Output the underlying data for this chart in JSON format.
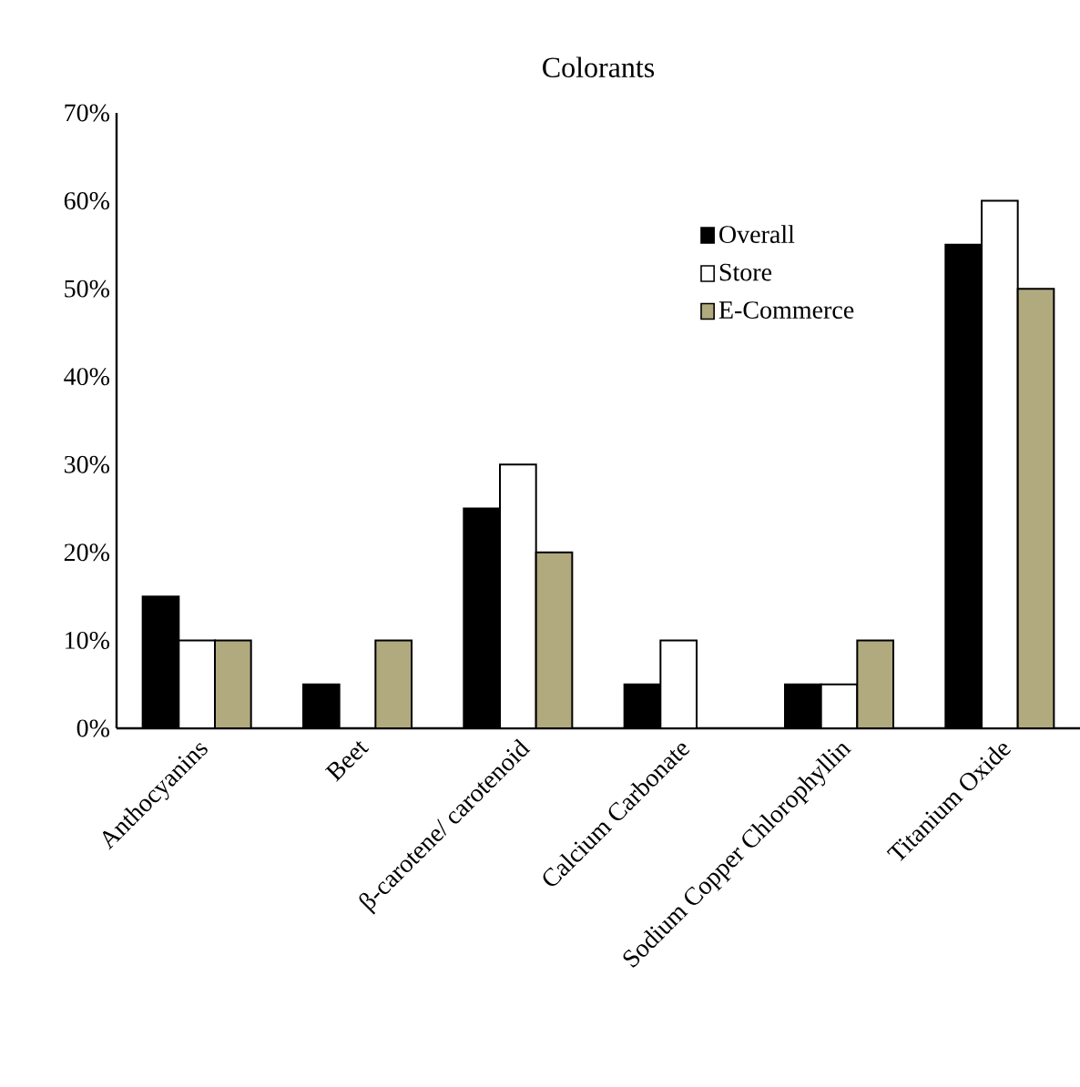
{
  "chart_data": {
    "type": "bar",
    "title": "Colorants",
    "categories": [
      "Anthocyanins",
      "Beet",
      "β-carotene/ carotenoid",
      "Calcium Carbonate",
      "Sodium Copper Chlorophyllin",
      "Titanium Oxide"
    ],
    "series": [
      {
        "name": "Overall",
        "color": "#000000",
        "values": [
          15,
          5,
          25,
          5,
          5,
          55
        ]
      },
      {
        "name": "Store",
        "color": "#ffffff",
        "values": [
          10,
          0,
          30,
          10,
          5,
          60
        ]
      },
      {
        "name": "E-Commerce",
        "color": "#b0aa7e",
        "values": [
          10,
          10,
          20,
          0,
          10,
          50
        ]
      }
    ],
    "ylim": [
      0,
      70
    ],
    "yticks": [
      {
        "value": 0,
        "label": "0%"
      },
      {
        "value": 10,
        "label": "10%"
      },
      {
        "value": 20,
        "label": "20%"
      },
      {
        "value": 30,
        "label": "30%"
      },
      {
        "value": 40,
        "label": "40%"
      },
      {
        "value": 50,
        "label": "50%"
      },
      {
        "value": 60,
        "label": "60%"
      },
      {
        "value": 70,
        "label": "70%"
      }
    ],
    "grid": false,
    "legend": "top right"
  }
}
